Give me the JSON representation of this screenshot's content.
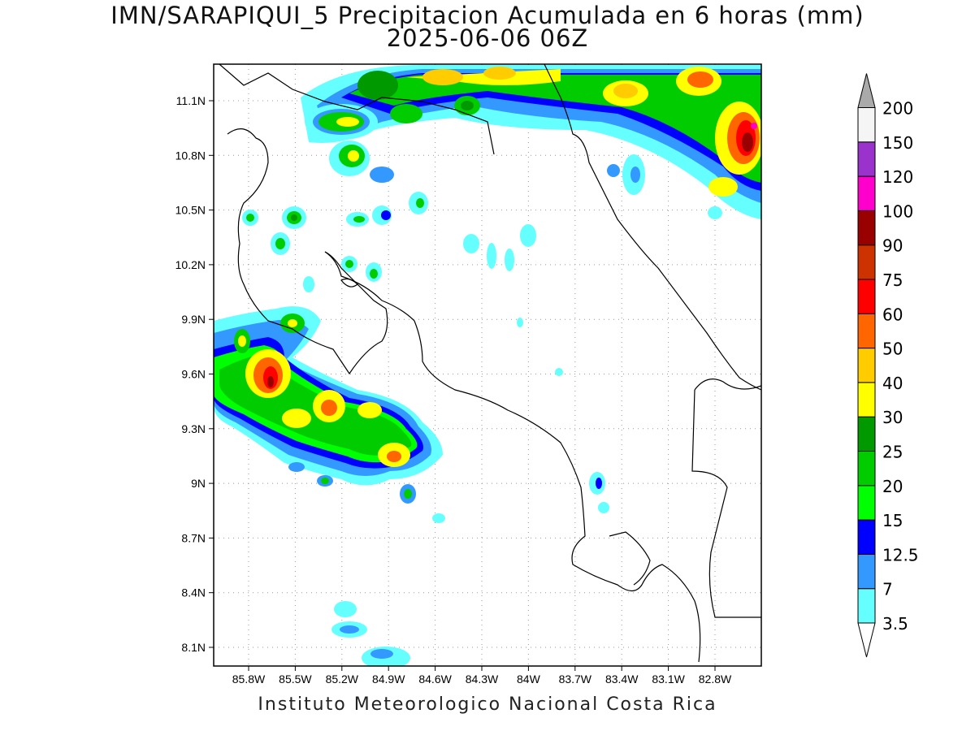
{
  "title": {
    "line1": "IMN/SARAPIQUI_5 Precipitacion Acumulada en 6 horas (mm)",
    "line2": "2025-06-06 06Z"
  },
  "footer": "Instituto Meteorologico Nacional Costa Rica",
  "map": {
    "lat_labels": [
      "11.1N",
      "10.8N",
      "10.5N",
      "10.2N",
      "9.9N",
      "9.6N",
      "9.3N",
      "9N",
      "8.7N",
      "8.4N",
      "8.1N"
    ],
    "lon_labels": [
      "85.8W",
      "85.5W",
      "85.2W",
      "84.9W",
      "84.6W",
      "84.3W",
      "84W",
      "83.7W",
      "83.4W",
      "83.1W",
      "82.8W"
    ],
    "lon_range_deg_west": [
      86.0,
      82.5
    ],
    "lat_range_deg_north": [
      8.0,
      11.3
    ]
  },
  "colorbar": {
    "levels": [
      "3.5",
      "7",
      "12.5",
      "15",
      "20",
      "25",
      "30",
      "40",
      "50",
      "60",
      "75",
      "90",
      "100",
      "120",
      "150",
      "200"
    ],
    "colors": [
      "#66ffff",
      "#3399ff",
      "#0000ff",
      "#00ff00",
      "#00cc00",
      "#009900",
      "#ffff00",
      "#ffcc00",
      "#ff6600",
      "#ff0000",
      "#cc3300",
      "#990000",
      "#ff00cc",
      "#9933cc",
      "#f5f5f5",
      "#aaaaaa"
    ]
  }
}
